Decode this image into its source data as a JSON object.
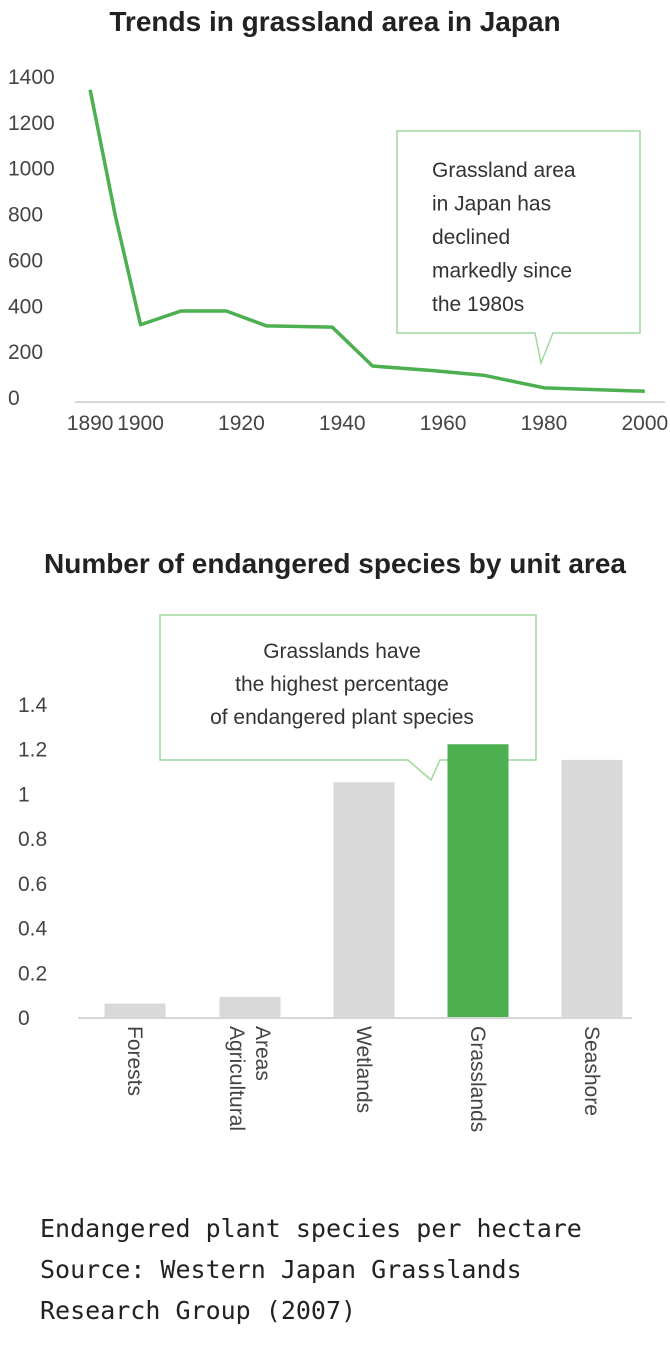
{
  "chart_data": [
    {
      "type": "line",
      "title": "Trends in grassland area in Japan",
      "xlabel": "",
      "ylabel": "",
      "x": [
        1890,
        1895,
        1900,
        1908,
        1917,
        1925,
        1938,
        1946,
        1958,
        1968,
        1980,
        2000
      ],
      "values": [
        1340,
        790,
        315,
        375,
        375,
        310,
        305,
        135,
        115,
        95,
        40,
        25
      ],
      "xlim": [
        1887,
        2004
      ],
      "ylim": [
        0,
        1400
      ],
      "x_ticks": [
        "1890",
        "1900",
        "1920",
        "1940",
        "1960",
        "1980",
        "2000"
      ],
      "y_ticks": [
        "0",
        "200",
        "400",
        "600",
        "800",
        "1000",
        "1200",
        "1400"
      ],
      "grid": false,
      "line_color": "#4caf50",
      "annotation": {
        "lines": [
          "Grassland area",
          "in Japan has",
          "declined",
          "markedly since",
          "the 1980s"
        ],
        "points_to_x": 1980
      }
    },
    {
      "type": "bar",
      "title": "Number of endangered species by unit area",
      "xlabel": "",
      "ylabel": "",
      "categories": [
        "Forests",
        "Agricultural Areas",
        "Wetlands",
        "Grasslands",
        "Seashore"
      ],
      "category_label_lines": [
        [
          "Forests"
        ],
        [
          "Agricultural",
          "Areas"
        ],
        [
          "Wetlands"
        ],
        [
          "Grasslands"
        ],
        [
          "Seashore"
        ]
      ],
      "values": [
        0.06,
        0.09,
        1.05,
        1.22,
        1.15
      ],
      "ylim": [
        0,
        1.4
      ],
      "y_ticks": [
        "0",
        "0.2",
        "0.4",
        "0.6",
        "0.8",
        "1",
        "1.2",
        "1.4"
      ],
      "grid": false,
      "bar_color": "#d9d9d9",
      "highlight_color": "#4caf50",
      "highlight_index": 3,
      "annotation": {
        "lines": [
          "Grasslands have",
          "the highest percentage",
          "of endangered plant species"
        ],
        "points_to": "Grasslands"
      }
    }
  ],
  "accent_color": "#4caf50",
  "callout_border_color": "#9ed89e",
  "footnote": {
    "line1": "Endangered plant species per hectare",
    "line2": "Source: Western Japan Grasslands",
    "line3": "Research Group (2007)"
  }
}
